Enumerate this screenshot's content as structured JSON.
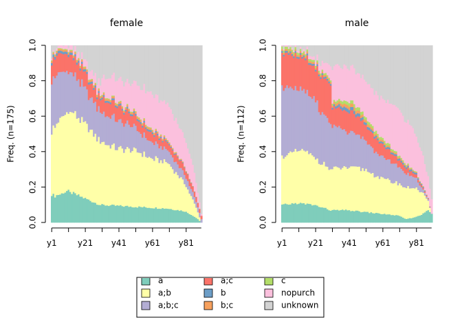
{
  "palette": {
    "a": "#7FCDBB",
    "a;b": "#FFFFA8",
    "a;b;c": "#B3ADD4",
    "a;c": "#FB7369",
    "b": "#6D9EC7",
    "b;c": "#F7A15E",
    "c": "#B3DE69",
    "nopurch": "#FBC0DD",
    "unknown": "#D3D3D3"
  },
  "legend": {
    "placement": "bottom-center",
    "entries": [
      {
        "key": "a",
        "label": "a",
        "visible": false
      },
      {
        "key": "a;c",
        "label": "a;c",
        "visible": false
      },
      {
        "key": "c",
        "label": "c",
        "visible": false
      },
      {
        "key": "a;b",
        "label": "a;b",
        "visible": true
      },
      {
        "key": "b",
        "label": "b",
        "visible": true
      },
      {
        "key": "nopurch",
        "label": "nopurch",
        "visible": true
      },
      {
        "key": "a;b;c",
        "label": "a;b;c",
        "visible": true
      },
      {
        "key": "b;c",
        "label": "b;c",
        "visible": true
      },
      {
        "key": "unknown",
        "label": "unknown",
        "visible": true
      }
    ]
  },
  "chart_data": [
    {
      "type": "area",
      "stacking": "proportional",
      "title": "female",
      "ylabel": "Freq. (n=175)",
      "xlabel": "",
      "ylim": [
        0,
        1
      ],
      "yticks": [
        "0.0",
        "0.2",
        "0.4",
        "0.6",
        "0.8",
        "1.0"
      ],
      "xticks": [
        "y1",
        "y21",
        "y41",
        "y61",
        "y81"
      ],
      "x_count": 90,
      "series_order": [
        "a",
        "a;b",
        "a;b;c",
        "a;c",
        "b",
        "b;c",
        "c",
        "nopurch",
        "unknown"
      ],
      "knots": {
        "a": [
          [
            1,
            0.16
          ],
          [
            3,
            0.15
          ],
          [
            10,
            0.18
          ],
          [
            20,
            0.14
          ],
          [
            30,
            0.1
          ],
          [
            40,
            0.095
          ],
          [
            50,
            0.09
          ],
          [
            60,
            0.085
          ],
          [
            70,
            0.08
          ],
          [
            80,
            0.065
          ],
          [
            85,
            0.04
          ],
          [
            88,
            0.02
          ],
          [
            90,
            0
          ]
        ],
        "a;b": [
          [
            1,
            0.36
          ],
          [
            5,
            0.42
          ],
          [
            12,
            0.46
          ],
          [
            20,
            0.42
          ],
          [
            30,
            0.36
          ],
          [
            40,
            0.32
          ],
          [
            50,
            0.32
          ],
          [
            60,
            0.28
          ],
          [
            70,
            0.26
          ],
          [
            75,
            0.21
          ],
          [
            80,
            0.16
          ],
          [
            85,
            0.09
          ],
          [
            88,
            0.04
          ],
          [
            90,
            0
          ]
        ],
        "a;b;c": [
          [
            1,
            0.3
          ],
          [
            5,
            0.27
          ],
          [
            12,
            0.22
          ],
          [
            20,
            0.2
          ],
          [
            30,
            0.17
          ],
          [
            40,
            0.16
          ],
          [
            50,
            0.13
          ],
          [
            60,
            0.09
          ],
          [
            70,
            0.07
          ],
          [
            75,
            0.06
          ],
          [
            80,
            0.05
          ],
          [
            85,
            0.04
          ],
          [
            90,
            0.02
          ]
        ],
        "a;c": [
          [
            1,
            0.11
          ],
          [
            10,
            0.1
          ],
          [
            20,
            0.09
          ],
          [
            30,
            0.07
          ],
          [
            31,
            0.08
          ],
          [
            40,
            0.08
          ],
          [
            50,
            0.06
          ],
          [
            60,
            0.05
          ],
          [
            70,
            0.04
          ],
          [
            80,
            0.04
          ],
          [
            90,
            0.02
          ]
        ],
        "b": [
          [
            1,
            0.015
          ],
          [
            30,
            0.01
          ],
          [
            60,
            0.01
          ],
          [
            90,
            0
          ]
        ],
        "b;c": [
          [
            1,
            0.01
          ],
          [
            30,
            0.01
          ],
          [
            60,
            0.01
          ],
          [
            90,
            0
          ]
        ],
        "c": [
          [
            1,
            0.005
          ],
          [
            30,
            0.005
          ],
          [
            60,
            0.005
          ],
          [
            90,
            0
          ]
        ],
        "nopurch": [
          [
            1,
            0.01
          ],
          [
            10,
            0.02
          ],
          [
            20,
            0.04
          ],
          [
            30,
            0.06
          ],
          [
            31,
            0.1
          ],
          [
            40,
            0.13
          ],
          [
            50,
            0.16
          ],
          [
            60,
            0.2
          ],
          [
            70,
            0.2
          ],
          [
            80,
            0.17
          ],
          [
            85,
            0.12
          ],
          [
            88,
            0.06
          ],
          [
            90,
            0.01
          ]
        ]
      }
    },
    {
      "type": "area",
      "stacking": "proportional",
      "title": "male",
      "ylabel": "Freq. (n=112)",
      "xlabel": "",
      "ylim": [
        0,
        1
      ],
      "yticks": [
        "0.0",
        "0.2",
        "0.4",
        "0.6",
        "0.8",
        "1.0"
      ],
      "xticks": [
        "y1",
        "y21",
        "y41",
        "y61",
        "y81"
      ],
      "x_count": 90,
      "series_order": [
        "a",
        "a;b",
        "a;b;c",
        "a;c",
        "b",
        "b;c",
        "c",
        "nopurch",
        "unknown"
      ],
      "knots": {
        "a": [
          [
            1,
            0.1
          ],
          [
            10,
            0.11
          ],
          [
            20,
            0.1
          ],
          [
            30,
            0.07
          ],
          [
            40,
            0.07
          ],
          [
            50,
            0.06
          ],
          [
            60,
            0.05
          ],
          [
            70,
            0.04
          ],
          [
            75,
            0.02
          ],
          [
            80,
            0.03
          ],
          [
            85,
            0.05
          ],
          [
            88,
            0.07
          ],
          [
            90,
            0.05
          ]
        ],
        "a;b": [
          [
            1,
            0.27
          ],
          [
            5,
            0.28
          ],
          [
            12,
            0.3
          ],
          [
            20,
            0.27
          ],
          [
            30,
            0.23
          ],
          [
            40,
            0.24
          ],
          [
            50,
            0.24
          ],
          [
            60,
            0.2
          ],
          [
            70,
            0.18
          ],
          [
            80,
            0.17
          ],
          [
            85,
            0.11
          ],
          [
            88,
            0.05
          ],
          [
            90,
            0
          ]
        ],
        "a;b;c": [
          [
            1,
            0.4
          ],
          [
            5,
            0.38
          ],
          [
            12,
            0.35
          ],
          [
            20,
            0.33
          ],
          [
            30,
            0.25
          ],
          [
            40,
            0.2
          ],
          [
            50,
            0.17
          ],
          [
            60,
            0.12
          ],
          [
            70,
            0.1
          ],
          [
            80,
            0.06
          ],
          [
            85,
            0.02
          ],
          [
            90,
            0
          ]
        ],
        "a;c": [
          [
            1,
            0.19
          ],
          [
            10,
            0.19
          ],
          [
            20,
            0.18
          ],
          [
            30,
            0.23
          ],
          [
            31,
            0.1
          ],
          [
            40,
            0.12
          ],
          [
            50,
            0.09
          ],
          [
            60,
            0.07
          ],
          [
            70,
            0.04
          ],
          [
            80,
            0.02
          ],
          [
            90,
            0
          ]
        ],
        "b": [
          [
            1,
            0.01
          ],
          [
            30,
            0.01
          ],
          [
            40,
            0.02
          ],
          [
            60,
            0.01
          ],
          [
            80,
            0.01
          ],
          [
            90,
            0
          ]
        ],
        "b;c": [
          [
            1,
            0.01
          ],
          [
            30,
            0.01
          ],
          [
            40,
            0.02
          ],
          [
            60,
            0.01
          ],
          [
            90,
            0
          ]
        ],
        "c": [
          [
            1,
            0.015
          ],
          [
            30,
            0.01
          ],
          [
            40,
            0.02
          ],
          [
            60,
            0.015
          ],
          [
            90,
            0
          ]
        ],
        "nopurch": [
          [
            1,
            0.005
          ],
          [
            10,
            0.01
          ],
          [
            20,
            0.02
          ],
          [
            30,
            0.08
          ],
          [
            31,
            0.2
          ],
          [
            40,
            0.19
          ],
          [
            50,
            0.2
          ],
          [
            60,
            0.22
          ],
          [
            70,
            0.26
          ],
          [
            80,
            0.22
          ],
          [
            85,
            0.17
          ],
          [
            88,
            0.12
          ],
          [
            90,
            0.08
          ]
        ]
      }
    }
  ]
}
